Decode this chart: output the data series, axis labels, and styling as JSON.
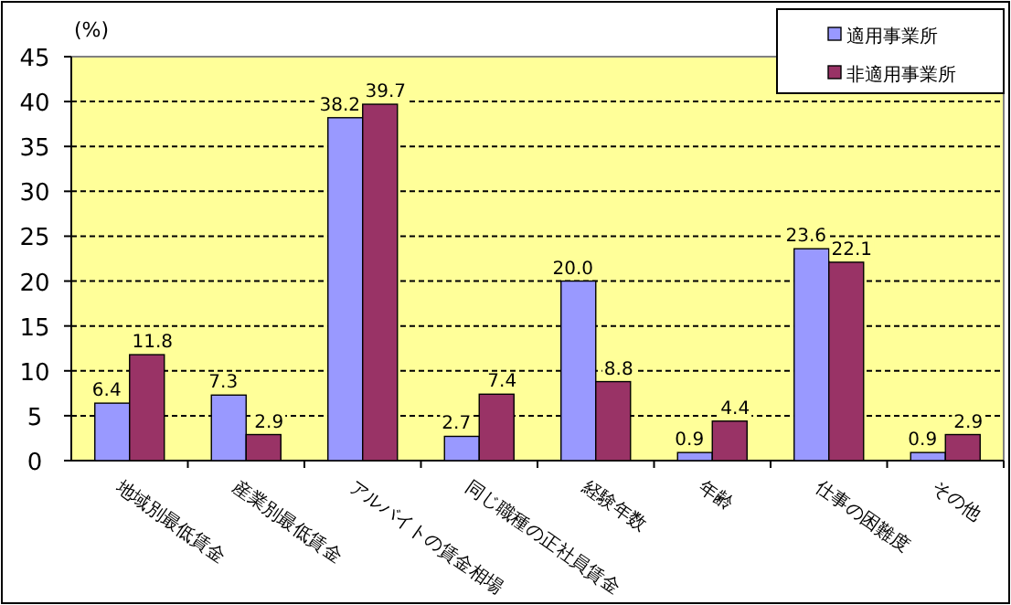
{
  "chart_data": {
    "type": "bar",
    "ylabel": "(%)",
    "categories": [
      "地域別最低賃金",
      "産業別最低賃金",
      "アルバイトの賃金相場",
      "同じ職種の正社員賃金",
      "経験年数",
      "年齢",
      "仕事の困難度",
      "その他"
    ],
    "series": [
      {
        "name": "適用事業所",
        "color": "#9999ff",
        "values": [
          6.4,
          7.3,
          38.2,
          2.7,
          20.0,
          0.9,
          23.6,
          0.9
        ],
        "value_labels": [
          "6.4",
          "7.3",
          "38.2",
          "2.7",
          "20.0",
          "0.9",
          "23.6",
          "0.9"
        ]
      },
      {
        "name": "非適用事業所",
        "color": "#993366",
        "values": [
          11.8,
          2.9,
          39.7,
          7.4,
          8.8,
          4.4,
          22.1,
          2.9
        ],
        "value_labels": [
          "11.8",
          "2.9",
          "39.7",
          "7.4",
          "8.8",
          "4.4",
          "22.1",
          "2.9"
        ]
      }
    ],
    "ylim": [
      0,
      45
    ],
    "yticks": [
      0,
      5,
      10,
      15,
      20,
      25,
      30,
      35,
      40,
      45
    ],
    "grid": "y",
    "legend": "top right"
  }
}
